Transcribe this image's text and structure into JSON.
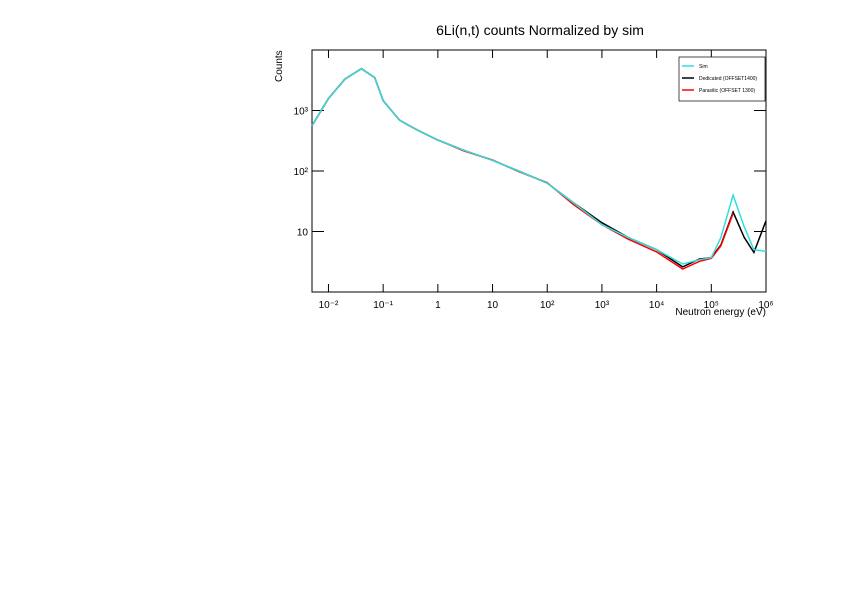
{
  "chart_data": {
    "type": "line",
    "title": "6Li(n,t) counts Normalized by sim",
    "x_label": "Neutron energy (eV)",
    "y_label": "Counts",
    "x_log": true,
    "y_log": true,
    "xlim": [
      0.005,
      1000000
    ],
    "ylim": [
      1,
      10000
    ],
    "xticks": [
      {
        "value": 0.01,
        "label": "10⁻²"
      },
      {
        "value": 0.1,
        "label": "10⁻¹"
      },
      1,
      10,
      {
        "value": 100,
        "label": "10²"
      },
      {
        "value": 1000,
        "label": "10³"
      },
      {
        "value": 10000,
        "label": "10⁴"
      },
      {
        "value": 100000,
        "label": "10⁵"
      },
      {
        "value": 1000000,
        "label": "10⁶"
      }
    ],
    "yticks": [
      10,
      {
        "value": 100,
        "label": "10²"
      },
      {
        "value": 1000,
        "label": "10³"
      }
    ],
    "legend": "top-right",
    "x": [
      0.005,
      0.01,
      0.02,
      0.04,
      0.07,
      0.1,
      0.2,
      0.3,
      0.5,
      1,
      3,
      10,
      30,
      100,
      300,
      1000,
      3000,
      10000,
      30000,
      60000,
      100000,
      150000,
      250000,
      400000,
      600000,
      1000000
    ],
    "series": [
      {
        "name": "Dedicated (OFFSET1400)",
        "color": "#000000",
        "values": [
          560,
          1580,
          3300,
          4900,
          3500,
          1450,
          690,
          560,
          440,
          325,
          220,
          150,
          100,
          63,
          30,
          14,
          8,
          5,
          2.6,
          3.5,
          3.7,
          6,
          21,
          8,
          4.5,
          15
        ]
      },
      {
        "name": "Parasitic (OFFSET 1300)",
        "color": "#ff0000",
        "values": [
          560,
          1580,
          3300,
          4900,
          3500,
          1450,
          690,
          560,
          440,
          325,
          215,
          152,
          98,
          64,
          28,
          13,
          7.5,
          4.6,
          2.4,
          3.2,
          3.6,
          5.8,
          20,
          null,
          null,
          null
        ]
      },
      {
        "name": "Sim",
        "color": "#33dddd",
        "values": [
          560,
          1580,
          3300,
          4900,
          3500,
          1450,
          690,
          560,
          440,
          325,
          220,
          150,
          100,
          63,
          30,
          13,
          8,
          5,
          2.9,
          3.4,
          3.7,
          8,
          40,
          12,
          5,
          4.7
        ]
      }
    ]
  }
}
